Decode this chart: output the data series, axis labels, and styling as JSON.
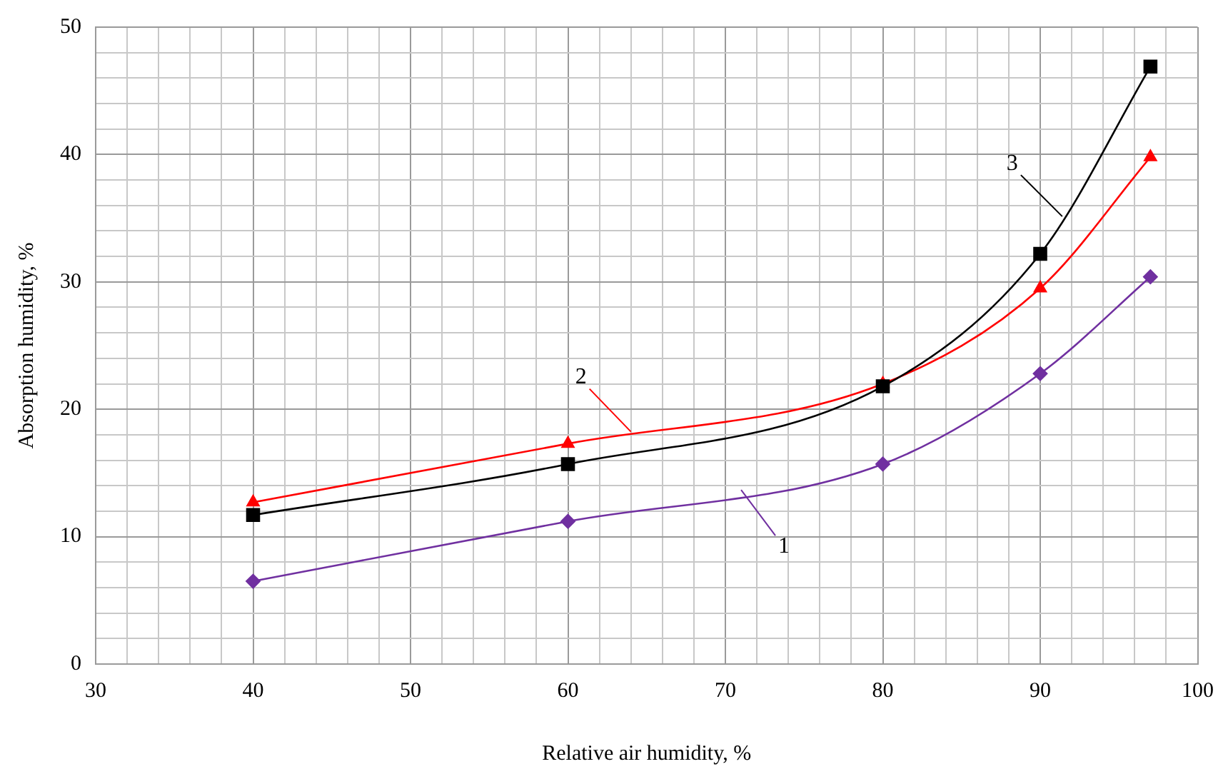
{
  "chart_data": {
    "type": "line",
    "xlabel": "Relative air humidity, %",
    "ylabel": "Absorption humidity, %",
    "x": [
      40,
      60,
      80,
      90,
      97
    ],
    "series": [
      {
        "name": "1",
        "color": "#7030a0",
        "marker": "diamond",
        "values": [
          6.5,
          11.2,
          15.7,
          22.8,
          30.4
        ]
      },
      {
        "name": "2",
        "color": "#ff0000",
        "marker": "triangle",
        "values": [
          12.7,
          17.3,
          22,
          29.5,
          39.8
        ]
      },
      {
        "name": "3",
        "color": "#000000",
        "marker": "square",
        "values": [
          11.7,
          15.7,
          21.8,
          32.2,
          46.9
        ]
      }
    ],
    "xlim": [
      30,
      100
    ],
    "xticks": [
      30,
      40,
      50,
      60,
      70,
      80,
      90,
      100
    ],
    "ylim": [
      0,
      50
    ],
    "yticks": [
      0,
      10,
      20,
      30,
      40,
      50
    ],
    "grid": true
  }
}
